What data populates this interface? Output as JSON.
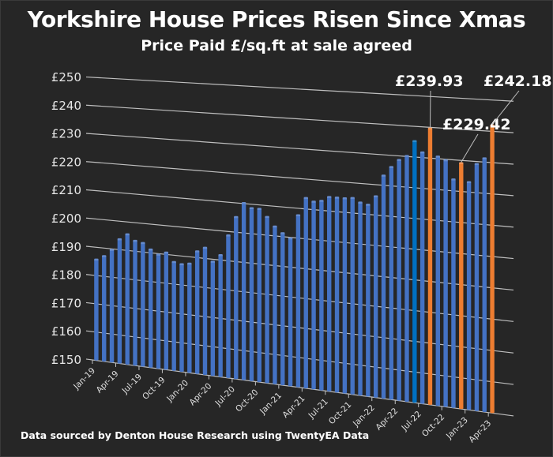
{
  "chart_data": {
    "type": "bar",
    "title": "Yorkshire House Prices Risen Since Xmas",
    "subtitle": "Price Paid £/sq.ft at sale agreed",
    "xlabel": "",
    "ylabel": "",
    "ylim": [
      150,
      250
    ],
    "yticks": [
      150,
      160,
      170,
      180,
      190,
      200,
      210,
      220,
      230,
      240,
      250
    ],
    "ytick_labels": [
      "£150",
      "£160",
      "£170",
      "£180",
      "£190",
      "£200",
      "£210",
      "£220",
      "£230",
      "£240",
      "£250"
    ],
    "grid": true,
    "legend": "none",
    "categories": [
      "Jan-19",
      "Feb-19",
      "Mar-19",
      "Apr-19",
      "May-19",
      "Jun-19",
      "Jul-19",
      "Aug-19",
      "Sep-19",
      "Oct-19",
      "Nov-19",
      "Dec-19",
      "Jan-20",
      "Feb-20",
      "Mar-20",
      "Apr-20",
      "May-20",
      "Jun-20",
      "Jul-20",
      "Aug-20",
      "Sep-20",
      "Oct-20",
      "Nov-20",
      "Dec-20",
      "Jan-21",
      "Feb-21",
      "Mar-21",
      "Apr-21",
      "May-21",
      "Jun-21",
      "Jul-21",
      "Aug-21",
      "Sep-21",
      "Oct-21",
      "Nov-21",
      "Dec-21",
      "Jan-22",
      "Feb-22",
      "Mar-22",
      "Apr-22",
      "May-22",
      "Jun-22",
      "Jul-22",
      "Aug-22",
      "Sep-22",
      "Oct-22",
      "Nov-22",
      "Dec-22",
      "Jan-23",
      "Feb-23",
      "Mar-23",
      "Apr-23"
    ],
    "xtick_labels": [
      "Jan-19",
      "Apr-19",
      "Jul-19",
      "Oct-19",
      "Jan-20",
      "Apr-20",
      "Jul-20",
      "Oct-20",
      "Jan-21",
      "Apr-21",
      "Jul-21",
      "Oct-21",
      "Jan-22",
      "Apr-22",
      "Jul-22",
      "Oct-22",
      "Jan-23",
      "Apr-23"
    ],
    "values": [
      186,
      187.5,
      190,
      194,
      196,
      194,
      193.5,
      191.5,
      190,
      191,
      188,
      187.5,
      188,
      192.5,
      194,
      189.5,
      192,
      199,
      205.5,
      210.5,
      209,
      209,
      206.5,
      203.5,
      201.5,
      200,
      208,
      214,
      213,
      213.5,
      215,
      215,
      215,
      215.3,
      214,
      213.5,
      216.5,
      223.5,
      226.5,
      229,
      230.5,
      235.5,
      232,
      239.93,
      231,
      230,
      224,
      229.42,
      223.5,
      229.5,
      231.5,
      242.18
    ],
    "highlight": {
      "Jun-22": "#0070c0",
      "Aug-22": "#ed7d31",
      "Dec-22": "#ed7d31",
      "Apr-23": "#ed7d31"
    },
    "bar_color": "#4472c4",
    "annotations": [
      {
        "category": "Aug-22",
        "text": "£239.93"
      },
      {
        "category": "Dec-22",
        "text": "£229.42"
      },
      {
        "category": "Apr-23",
        "text": "£242.18"
      }
    ]
  },
  "footer": {
    "source": "Data sourced by Denton House Research using TwentyEA Data"
  }
}
